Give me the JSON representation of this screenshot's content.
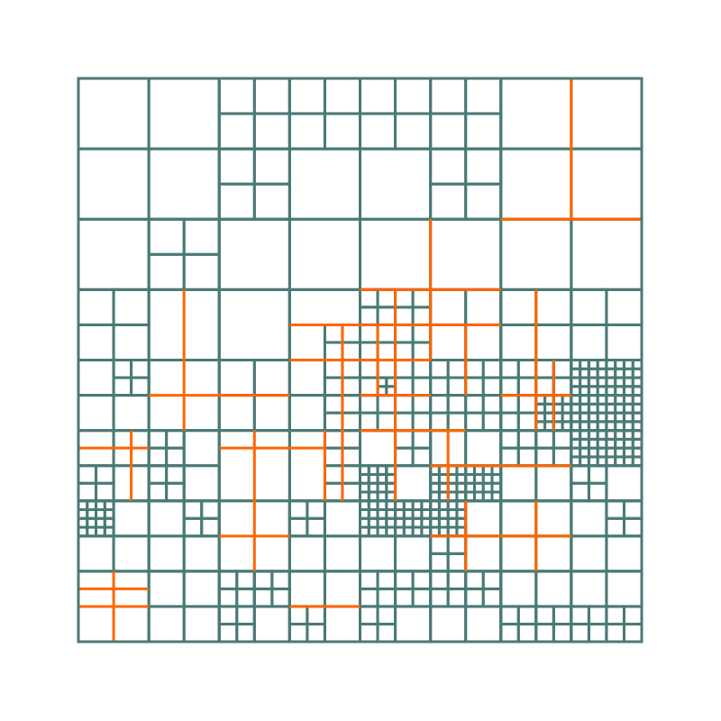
{
  "colors": {
    "background": "#ffffff",
    "grid": "#4a7a76",
    "highlight": "#ff6600"
  },
  "grid": {
    "divisions": 8,
    "highlight_lines": [
      {
        "v": [
          7,
          0,
          2
        ]
      },
      {
        "h": [
          2,
          6,
          8
        ]
      },
      {
        "h": [
          4.5,
          1,
          3
        ]
      },
      {
        "v": [
          1.5,
          3,
          5
        ]
      },
      {
        "h": [
          3.5,
          3,
          6
        ]
      },
      {
        "v": [
          4.5,
          3,
          6
        ]
      },
      {
        "h": [
          3,
          4,
          6
        ]
      },
      {
        "v": [
          5,
          2,
          4
        ]
      },
      {
        "h": [
          4,
          3,
          5
        ]
      },
      {
        "h": [
          4.5,
          4,
          5
        ]
      },
      {
        "h": [
          5,
          4,
          5.5
        ]
      },
      {
        "v": [
          3.75,
          3.5,
          6
        ]
      },
      {
        "v": [
          4.25,
          3.5,
          4.5
        ]
      },
      {
        "v": [
          5.5,
          3.5,
          4.5
        ]
      },
      {
        "h": [
          5.25,
          2,
          3.5
        ]
      },
      {
        "v": [
          2.5,
          5,
          7
        ]
      },
      {
        "v": [
          3.5,
          5,
          6
        ]
      },
      {
        "h": [
          6.5,
          2,
          3
        ]
      },
      {
        "h": [
          5.5,
          5,
          6
        ]
      },
      {
        "v": [
          5.25,
          5,
          6
        ]
      },
      {
        "h": [
          6.5,
          5,
          6
        ]
      },
      {
        "v": [
          5.5,
          6,
          7
        ]
      },
      {
        "v": [
          6.5,
          3,
          5
        ]
      },
      {
        "h": [
          4.5,
          6,
          7
        ]
      },
      {
        "v": [
          6.75,
          4,
          5
        ]
      },
      {
        "h": [
          6.5,
          6,
          7
        ]
      },
      {
        "v": [
          6.5,
          6,
          7
        ]
      },
      {
        "h": [
          5.5,
          6,
          7
        ]
      },
      {
        "h": [
          5.25,
          0,
          1
        ]
      },
      {
        "v": [
          0.75,
          5,
          6
        ]
      },
      {
        "h": [
          7.5,
          0,
          1
        ]
      },
      {
        "v": [
          0.5,
          7,
          8
        ]
      },
      {
        "h": [
          7.25,
          0,
          1
        ]
      },
      {
        "h": [
          7.5,
          3,
          4
        ]
      }
    ]
  }
}
